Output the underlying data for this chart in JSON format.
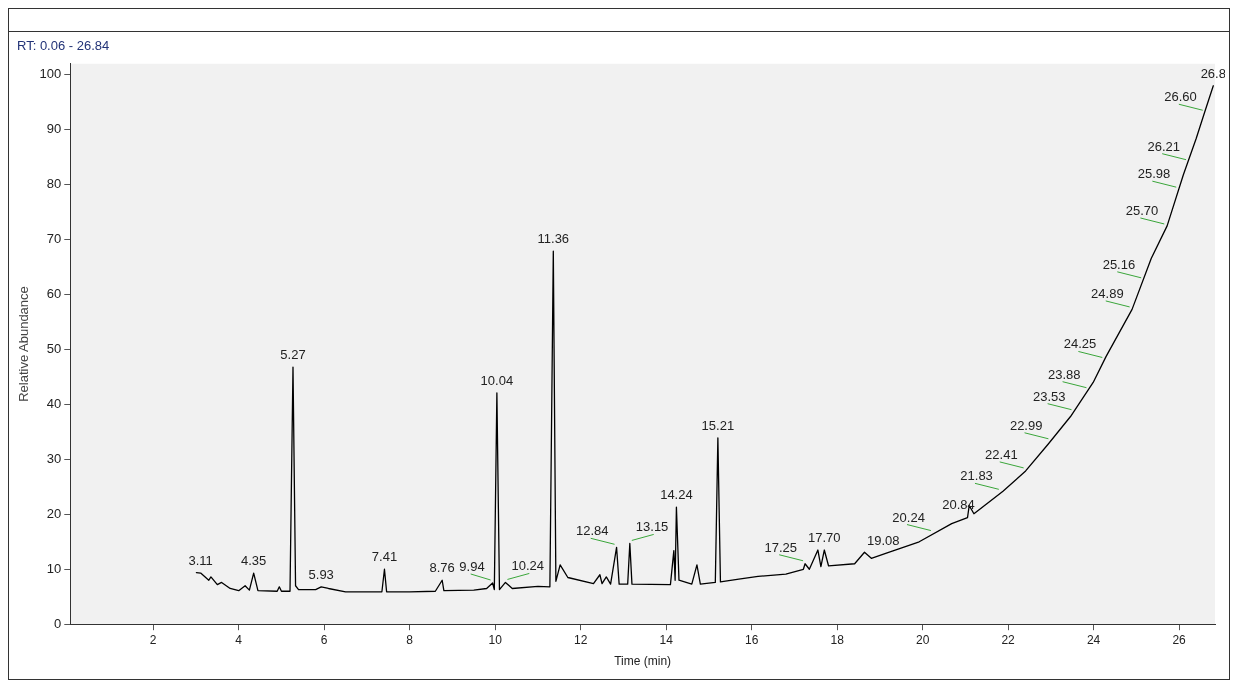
{
  "chart_data": {
    "type": "line",
    "xlabel": "Time (min)",
    "ylabel": "Relative Abundance",
    "xlim": [
      0.06,
      26.84
    ],
    "xticks": [
      2,
      4,
      6,
      8,
      10,
      12,
      14,
      16,
      18,
      20,
      22,
      24,
      26
    ],
    "ylim": [
      0,
      102
    ],
    "yticks": [
      0,
      10,
      20,
      30,
      40,
      50,
      60,
      70,
      80,
      90,
      100
    ],
    "grid": false,
    "legend": false,
    "marker": "none",
    "line_style": "solid",
    "series": [
      {
        "color": "#000000",
        "x": [
          3.01,
          3.11,
          3.3,
          3.35,
          3.5,
          3.6,
          3.8,
          4.0,
          4.15,
          4.25,
          4.35,
          4.45,
          4.9,
          4.95,
          5.0,
          5.2,
          5.27,
          5.33,
          5.4,
          5.8,
          5.93,
          6.1,
          6.5,
          7.0,
          7.35,
          7.41,
          7.46,
          8.0,
          8.6,
          8.76,
          8.8,
          9.5,
          9.8,
          9.94,
          9.98,
          10.04,
          10.1,
          10.24,
          10.4,
          11.0,
          11.28,
          11.36,
          11.42,
          11.52,
          11.7,
          12.3,
          12.45,
          12.5,
          12.6,
          12.7,
          12.84,
          12.9,
          13.1,
          13.15,
          13.2,
          14.1,
          14.18,
          14.21,
          14.24,
          14.3,
          14.6,
          14.72,
          14.8,
          15.15,
          15.21,
          15.27,
          15.7,
          16.15,
          16.8,
          17.21,
          17.25,
          17.35,
          17.55,
          17.62,
          17.7,
          17.8,
          18.41,
          18.64,
          18.8,
          19.17,
          19.92,
          20.68,
          21.05,
          21.09,
          21.2,
          21.88,
          22.41,
          22.94,
          23.46,
          23.99,
          24.29,
          24.9,
          25.35,
          25.72,
          26.1,
          26.4,
          26.59,
          26.8
        ],
        "values": [
          9.4,
          9.3,
          8.0,
          8.6,
          7.2,
          7.6,
          6.5,
          6.1,
          7.0,
          6.2,
          9.3,
          6.1,
          6.0,
          6.8,
          6.0,
          6.0,
          46.8,
          7.0,
          6.3,
          6.3,
          6.8,
          6.5,
          5.9,
          5.9,
          5.9,
          10.0,
          5.9,
          5.9,
          6.0,
          8.0,
          6.1,
          6.2,
          6.5,
          7.5,
          6.3,
          42.1,
          6.3,
          7.6,
          6.5,
          6.9,
          6.8,
          67.9,
          7.8,
          10.8,
          8.5,
          7.4,
          9.0,
          7.4,
          8.6,
          7.3,
          14.0,
          7.3,
          7.3,
          14.7,
          7.3,
          7.2,
          13.4,
          8.0,
          21.3,
          8.0,
          7.3,
          10.8,
          7.3,
          7.6,
          33.9,
          7.7,
          8.2,
          8.7,
          9.1,
          10.0,
          11.0,
          10.0,
          13.5,
          10.5,
          13.5,
          10.6,
          11.0,
          13.1,
          12.0,
          13.0,
          15.0,
          18.3,
          19.4,
          21.6,
          20.1,
          24.2,
          27.9,
          32.8,
          37.8,
          44.0,
          48.7,
          57.3,
          66.6,
          72.5,
          81.8,
          88.4,
          93.0,
          98.0
        ]
      }
    ],
    "annotations": [
      "RT: 0.06 - 26.84",
      {
        "text": "3.11",
        "x": 3.11,
        "y": 9.4
      },
      {
        "text": "4.35",
        "x": 4.35,
        "y": 9.3
      },
      {
        "text": "5.27",
        "x": 5.27,
        "y": 46.8
      },
      {
        "text": "5.93",
        "x": 5.93,
        "y": 6.8
      },
      {
        "text": "7.41",
        "x": 7.41,
        "y": 10.0
      },
      {
        "text": "8.76",
        "x": 8.76,
        "y": 8.0
      },
      {
        "text": "9.94",
        "x": 9.94,
        "y": 7.5
      },
      {
        "text": "10.04",
        "x": 10.04,
        "y": 42.1
      },
      {
        "text": "10.24",
        "x": 10.24,
        "y": 7.6
      },
      {
        "text": "11.36",
        "x": 11.36,
        "y": 67.9
      },
      {
        "text": "12.84",
        "x": 12.84,
        "y": 14.0
      },
      {
        "text": "13.15",
        "x": 13.15,
        "y": 14.7
      },
      {
        "text": "14.24",
        "x": 14.24,
        "y": 21.3
      },
      {
        "text": "15.21",
        "x": 15.21,
        "y": 33.9
      },
      {
        "text": "17.25",
        "x": 17.25,
        "y": 11.0
      },
      {
        "text": "17.70",
        "x": 17.7,
        "y": 13.5
      },
      {
        "text": "19.08",
        "x": 19.08,
        "y": 13.0
      },
      {
        "text": "20.24",
        "x": 20.24,
        "y": 16.5
      },
      {
        "text": "20.84",
        "x": 20.84,
        "y": 19.5
      },
      {
        "text": "21.83",
        "x": 21.83,
        "y": 24.0
      },
      {
        "text": "22.41",
        "x": 22.41,
        "y": 27.9
      },
      {
        "text": "22.99",
        "x": 22.99,
        "y": 33.2
      },
      {
        "text": "23.53",
        "x": 23.53,
        "y": 38.5
      },
      {
        "text": "23.88",
        "x": 23.88,
        "y": 42.5
      },
      {
        "text": "24.25",
        "x": 24.25,
        "y": 48.0
      },
      {
        "text": "24.89",
        "x": 24.89,
        "y": 57.2
      },
      {
        "text": "25.16",
        "x": 25.16,
        "y": 62.5
      },
      {
        "text": "25.70",
        "x": 25.7,
        "y": 72.3
      },
      {
        "text": "25.98",
        "x": 25.98,
        "y": 79.0
      },
      {
        "text": "26.21",
        "x": 26.21,
        "y": 84.0
      },
      {
        "text": "26.60",
        "x": 26.6,
        "y": 93.0
      },
      {
        "text": "26.8",
        "x": 26.8,
        "y": 98.0
      }
    ]
  }
}
